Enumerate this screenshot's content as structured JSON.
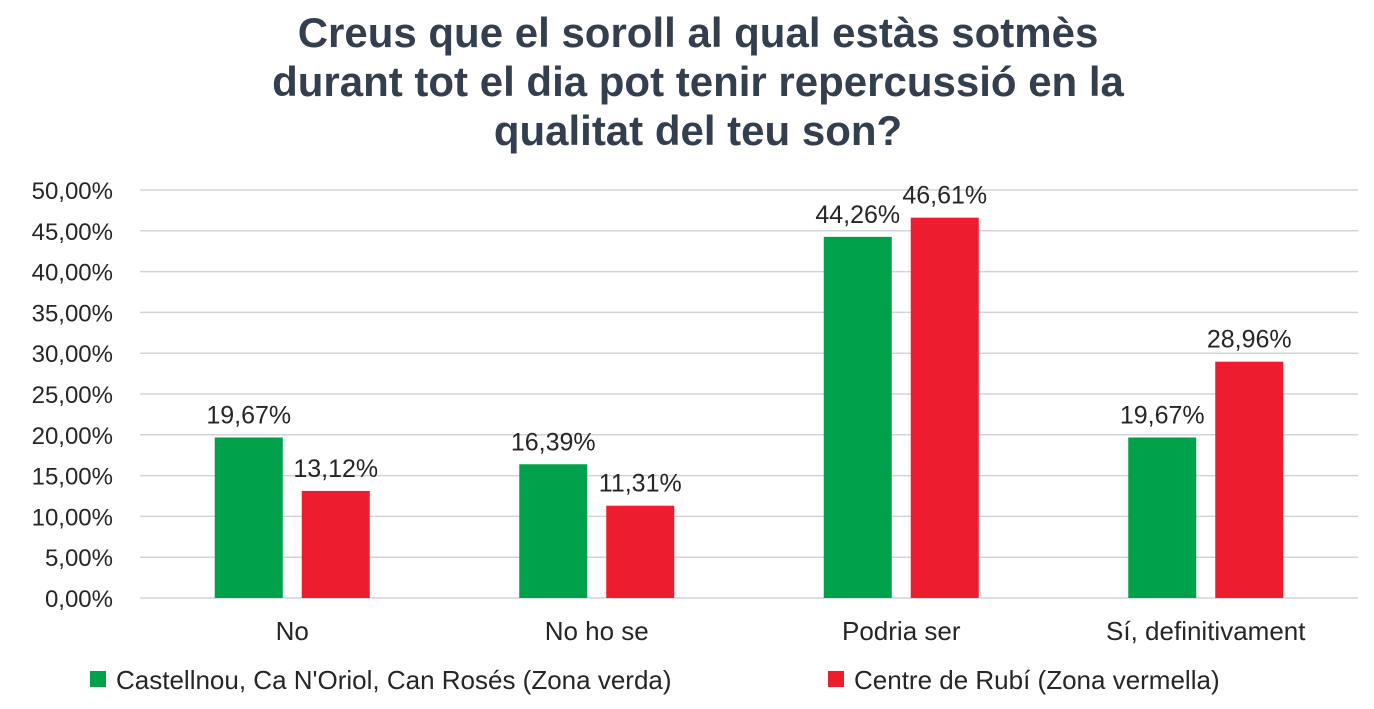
{
  "chart_data": {
    "type": "bar",
    "title_lines": [
      "Creus que el soroll al qual estàs sotmès",
      "durant tot el dia pot tenir repercussió en la",
      "qualitat del teu son?"
    ],
    "categories": [
      "No",
      "No ho se",
      "Podria ser",
      "Sí, definitivament"
    ],
    "series": [
      {
        "name": "Castellnou, Ca N'Oriol, Can Rosés (Zona verda)",
        "color": "#00a14b",
        "values": [
          19.67,
          16.39,
          44.26,
          19.67
        ],
        "labels": [
          "19,67%",
          "16,39%",
          "44,26%",
          "19,67%"
        ]
      },
      {
        "name": "Centre de Rubí (Zona vermella)",
        "color": "#ed1c2e",
        "values": [
          13.12,
          11.31,
          46.61,
          28.96
        ],
        "labels": [
          "13,12%",
          "11,31%",
          "46,61%",
          "28,96%"
        ]
      }
    ],
    "y_ticks": [
      "0,00%",
      "5,00%",
      "10,00%",
      "15,00%",
      "20,00%",
      "25,00%",
      "30,00%",
      "35,00%",
      "40,00%",
      "45,00%",
      "50,00%"
    ],
    "ylim": [
      0,
      50
    ],
    "grid": true,
    "legend_position": "bottom"
  }
}
